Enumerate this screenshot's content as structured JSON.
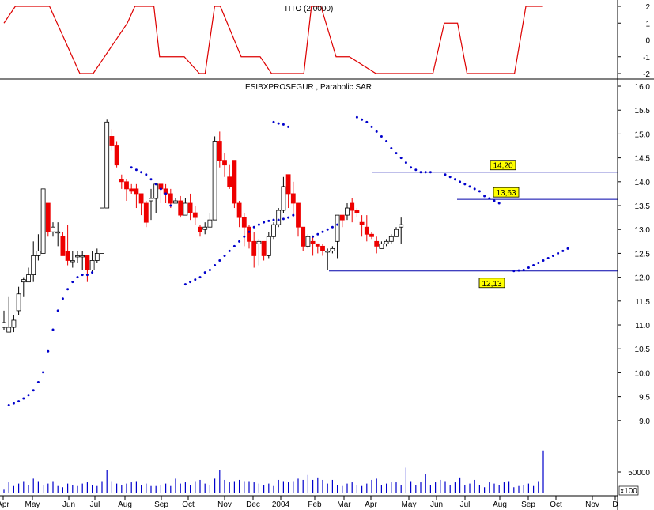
{
  "chart_data": [
    {
      "type": "line",
      "title": "TITO (2,0000)",
      "ylim": [
        -2,
        2
      ],
      "y_ticks": [
        "2",
        "1",
        "0",
        "-1",
        "-2"
      ],
      "grid": false,
      "series": [
        {
          "color": "#dd0000",
          "x": [
            0,
            6,
            15,
            24,
            40,
            47,
            65,
            69,
            79,
            82,
            86,
            95,
            103,
            106,
            111,
            114,
            125,
            130,
            135,
            141,
            149
          ],
          "values": [
            1,
            2,
            2,
            2,
            -2,
            -2,
            1,
            2,
            2,
            -1,
            -1,
            -1,
            -2,
            -2,
            2,
            2,
            -1,
            -1,
            -1,
            -2,
            -2
          ]
        }
      ],
      "series_continued": [
        {
          "x": [
            149,
            155,
            158,
            161,
            162,
            167,
            175,
            182,
            196,
            201,
            203,
            204,
            209,
            226,
            232,
            239,
            244,
            248,
            252,
            266,
            269,
            275,
            278,
            280,
            284
          ],
          "values": [
            -2,
            -2,
            -2,
            1,
            2,
            2,
            -1,
            -1,
            -2,
            -2,
            -2,
            -2,
            -2,
            -2,
            1,
            1,
            -2,
            -2,
            -2,
            -2,
            -2,
            2,
            2,
            2,
            2
          ]
        }
      ]
    },
    {
      "type": "candlestick",
      "title": "ESIBXPROSEGUR , Parabolic SAR",
      "ylim": [
        8.55,
        16.05
      ],
      "y_ticks": [
        "16.0",
        "15.5",
        "15.0",
        "14.5",
        "14.0",
        "13.5",
        "13.0",
        "12.5",
        "12.0",
        "11.5",
        "11.0",
        "10.5",
        "10.0",
        "9.5",
        "9.0"
      ],
      "x_labels": [
        "Apr",
        "May",
        "Jun",
        "Jul",
        "Aug",
        "Sep",
        "Oct",
        "Nov",
        "Dec",
        "2004",
        "Feb",
        "Mar",
        "Apr",
        "May",
        "Jun",
        "Jul",
        "Aug",
        "Sep",
        "Oct",
        "Nov",
        "D"
      ],
      "candles": [
        [
          10.95,
          11.05,
          10.9,
          11.3
        ],
        [
          10.85,
          10.95,
          10.85,
          11.6
        ],
        [
          10.95,
          11.1,
          10.85,
          11.2
        ],
        [
          11.3,
          11.65,
          11.2,
          11.8
        ],
        [
          11.9,
          11.95,
          11.6,
          12.0
        ],
        [
          11.9,
          12.05,
          11.9,
          12.2
        ],
        [
          12.05,
          12.45,
          11.9,
          12.75
        ],
        [
          12.45,
          12.55,
          12.35,
          12.9
        ],
        [
          12.5,
          13.85,
          12.5,
          13.85
        ],
        [
          13.55,
          12.95,
          12.85,
          13.55
        ],
        [
          12.95,
          13.05,
          12.85,
          13.15
        ],
        [
          12.95,
          12.95,
          12.65,
          13.15
        ],
        [
          12.85,
          12.45,
          12.45,
          12.95
        ],
        [
          12.55,
          12.35,
          12.25,
          13.1
        ],
        [
          12.35,
          12.35,
          12.2,
          12.55
        ],
        [
          12.45,
          12.45,
          12.3,
          12.55
        ],
        [
          12.45,
          12.45,
          12.15,
          12.55
        ],
        [
          12.45,
          12.15,
          11.9,
          12.45
        ],
        [
          12.15,
          12.35,
          12.1,
          12.55
        ],
        [
          12.35,
          12.5,
          12.3,
          12.6
        ],
        [
          12.5,
          13.45,
          12.5,
          13.45
        ],
        [
          13.45,
          15.25,
          13.45,
          15.3
        ],
        [
          14.95,
          14.75,
          14.65,
          15.1
        ],
        [
          14.75,
          14.35,
          14.3,
          14.85
        ],
        [
          14.05,
          14.0,
          13.85,
          14.15
        ],
        [
          14.0,
          13.85,
          13.6,
          14.05
        ],
        [
          13.85,
          13.8,
          13.75,
          13.95
        ],
        [
          13.85,
          13.75,
          13.45,
          13.95
        ],
        [
          13.75,
          13.55,
          13.3,
          13.75
        ],
        [
          13.55,
          13.15,
          13.05,
          13.6
        ],
        [
          13.6,
          13.65,
          13.2,
          13.85
        ],
        [
          13.65,
          13.95,
          13.35,
          13.95
        ],
        [
          13.95,
          13.85,
          13.55,
          13.95
        ],
        [
          13.85,
          13.75,
          13.55,
          13.95
        ],
        [
          13.75,
          13.55,
          13.45,
          13.85
        ],
        [
          13.55,
          13.6,
          13.55,
          13.65
        ],
        [
          13.6,
          13.3,
          13.25,
          13.7
        ],
        [
          13.3,
          13.55,
          13.3,
          13.65
        ],
        [
          13.55,
          13.35,
          13.2,
          13.75
        ],
        [
          13.35,
          13.25,
          13.1,
          13.5
        ],
        [
          13.05,
          12.95,
          12.85,
          13.1
        ],
        [
          13.0,
          13.05,
          12.9,
          13.15
        ],
        [
          13.05,
          13.2,
          13.05,
          13.35
        ],
        [
          13.2,
          14.85,
          13.2,
          14.95
        ],
        [
          14.85,
          14.45,
          14.3,
          15.05
        ],
        [
          14.45,
          14.35,
          14.1,
          14.6
        ],
        [
          14.1,
          13.9,
          13.85,
          14.35
        ],
        [
          14.45,
          13.55,
          13.45,
          14.45
        ],
        [
          13.55,
          13.25,
          13.05,
          13.6
        ],
        [
          13.25,
          13.05,
          12.65,
          13.35
        ],
        [
          13.05,
          12.75,
          12.6,
          13.1
        ],
        [
          12.75,
          12.45,
          12.2,
          12.95
        ],
        [
          12.7,
          12.75,
          12.25,
          12.8
        ],
        [
          12.75,
          12.45,
          12.35,
          12.75
        ],
        [
          12.45,
          12.85,
          12.4,
          12.95
        ],
        [
          12.85,
          13.1,
          12.8,
          13.15
        ],
        [
          13.1,
          13.4,
          13.05,
          13.45
        ],
        [
          13.4,
          13.9,
          13.35,
          14.1
        ],
        [
          14.15,
          13.75,
          13.45,
          14.15
        ],
        [
          13.75,
          13.55,
          13.25,
          14.0
        ],
        [
          13.55,
          13.05,
          12.85,
          13.55
        ],
        [
          13.05,
          12.65,
          12.55,
          13.05
        ],
        [
          12.65,
          12.85,
          12.6,
          12.9
        ],
        [
          12.75,
          12.7,
          12.45,
          12.85
        ],
        [
          12.7,
          12.65,
          12.5,
          12.7
        ],
        [
          12.65,
          12.55,
          12.45,
          12.7
        ],
        [
          12.55,
          12.55,
          12.15,
          12.6
        ],
        [
          12.55,
          12.6,
          12.5,
          12.65
        ],
        [
          12.75,
          13.3,
          12.4,
          13.3
        ],
        [
          13.3,
          13.2,
          13.05,
          13.3
        ],
        [
          13.3,
          13.45,
          13.2,
          13.55
        ],
        [
          13.55,
          13.4,
          13.15,
          13.65
        ],
        [
          13.4,
          13.35,
          13.25,
          13.45
        ],
        [
          13.15,
          13.1,
          12.85,
          13.3
        ],
        [
          13.05,
          12.9,
          12.75,
          13.3
        ],
        [
          12.9,
          12.85,
          12.8,
          12.95
        ],
        [
          12.75,
          12.65,
          12.5,
          12.85
        ],
        [
          12.6,
          12.7,
          12.6,
          12.75
        ],
        [
          12.7,
          12.75,
          12.65,
          12.8
        ],
        [
          12.75,
          12.85,
          12.7,
          12.9
        ],
        [
          12.85,
          13.0,
          12.85,
          13.05
        ],
        [
          13.05,
          13.1,
          12.7,
          13.25
        ]
      ],
      "sar": [
        {
          "start": 1,
          "values": [
            9.32,
            9.36,
            9.4,
            9.46,
            9.53,
            9.63,
            9.8,
            10.01,
            10.45,
            10.9,
            11.3,
            11.55,
            11.75,
            11.9,
            12.0,
            12.05,
            12.05,
            12.1
          ]
        },
        {
          "start": 26,
          "values": [
            14.3,
            14.25,
            14.2,
            14.15,
            14.05,
            13.95,
            13.85,
            13.75,
            13.5
          ]
        },
        {
          "start": 37,
          "values": [
            11.85,
            11.9,
            11.95,
            12.0,
            12.1,
            12.15,
            12.25,
            12.35,
            12.45,
            12.55,
            12.65,
            12.75,
            12.85,
            12.95,
            13.05,
            13.1,
            13.15,
            13.18,
            13.2,
            13.2,
            13.22,
            13.25,
            13.3
          ]
        },
        {
          "start": 55,
          "values": [
            15.25,
            15.22,
            15.2,
            15.15
          ]
        },
        {
          "start": 63,
          "values": [
            12.85,
            12.9,
            12.95,
            13.0,
            13.05,
            13.1
          ]
        },
        {
          "start": 72,
          "values": [
            15.35,
            15.3,
            15.25,
            15.15,
            15.05,
            14.95,
            14.85,
            14.7,
            14.6,
            14.5,
            14.4,
            14.3,
            14.25,
            14.2,
            14.2,
            14.2
          ]
        },
        {
          "start": 90,
          "values": [
            14.15,
            14.1,
            14.05,
            14.0,
            13.95,
            13.9,
            13.85,
            13.8,
            13.7,
            13.65,
            13.6,
            13.55
          ]
        },
        {
          "start": 104,
          "values": [
            12.13,
            12.14,
            12.15,
            12.2,
            12.25,
            12.3,
            12.35,
            12.4,
            12.45,
            12.5,
            12.55,
            12.6
          ]
        }
      ],
      "hlines": [
        {
          "label": "14,20",
          "value": 14.2
        },
        {
          "label": "13,63",
          "value": 13.63
        },
        {
          "label": "12,13",
          "value": 12.13
        }
      ],
      "up_color": "#ffffff",
      "down_color": "#ee0000",
      "sar_color": "#0000cc",
      "line_color": "#0000aa"
    },
    {
      "type": "bar",
      "title": "",
      "ylabel_tick": "50000",
      "multiplier": "x100",
      "color": "#0000cc",
      "values": [
        300,
        900,
        600,
        800,
        1000,
        700,
        1200,
        1000,
        700,
        800,
        1000,
        600,
        500,
        800,
        700,
        600,
        800,
        900,
        700,
        600,
        1000,
        1900,
        1000,
        800,
        700,
        800,
        900,
        1000,
        700,
        800,
        600,
        600,
        700,
        800,
        600,
        1200,
        800,
        900,
        700,
        1000,
        1100,
        800,
        700,
        1200,
        1900,
        1100,
        900,
        1000,
        1100,
        1000,
        1000,
        900,
        800,
        700,
        800,
        600,
        1100,
        1000,
        900,
        1000,
        1200,
        1100,
        1500,
        1100,
        1300,
        1100,
        800,
        1100,
        700,
        600,
        800,
        900,
        700,
        600,
        800,
        1100,
        1200,
        700,
        800,
        900,
        900,
        700,
        2100,
        1000,
        700,
        900,
        1600,
        700,
        900,
        1100,
        1000,
        700,
        900,
        1300,
        700,
        800,
        1100,
        700,
        500,
        900,
        800,
        700,
        900,
        1000,
        500,
        600,
        700,
        800,
        600,
        1000,
        3500
      ]
    }
  ]
}
